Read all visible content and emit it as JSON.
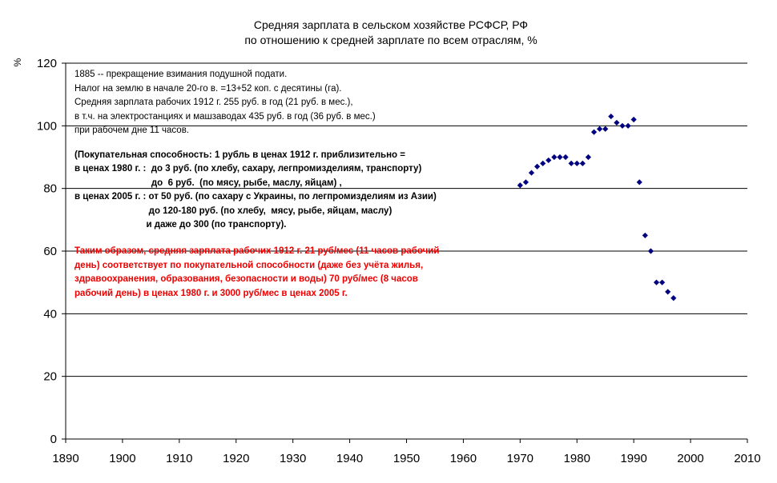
{
  "chart_data": {
    "type": "scatter",
    "title": [
      "Средняя зарплата в сельском хозяйстве РСФСР, РФ",
      "по отношению к средней зарплате по всем отраслям, %"
    ],
    "ylabel": "%",
    "xlabel": "",
    "xlim": [
      1890,
      2010
    ],
    "ylim": [
      0,
      120
    ],
    "x_ticks": [
      1890,
      1900,
      1910,
      1920,
      1930,
      1940,
      1950,
      1960,
      1970,
      1980,
      1990,
      2000,
      2010
    ],
    "y_ticks": [
      0,
      20,
      40,
      60,
      80,
      100,
      120
    ],
    "grid": "horizontal",
    "marker_color": "#000080",
    "x": [
      1970,
      1971,
      1972,
      1973,
      1974,
      1975,
      1976,
      1977,
      1978,
      1979,
      1980,
      1981,
      1982,
      1983,
      1984,
      1985,
      1986,
      1987,
      1988,
      1989,
      1990,
      1991,
      1992,
      1993,
      1994,
      1995,
      1996,
      1997
    ],
    "y": [
      81,
      82,
      85,
      87,
      88,
      89,
      90,
      90,
      90,
      88,
      88,
      88,
      90,
      98,
      99,
      99,
      103,
      101,
      100,
      100,
      102,
      82,
      65,
      60,
      50,
      50,
      47,
      45
    ],
    "annotations": {
      "note_1": "1885 -- прекращение взимания подушной подати.\nНалог на землю в начале 20-го в. =13+52 коп. с десятины (га).\nСредняя зарплата рабочих 1912 г. 255 руб. в год (21 руб. в мес.),\nв т.ч. на электростанциях и машзаводах 435 руб. в год (36 руб. в мес.)\nпри рабочем дне 11 часов.",
      "note_2": "(Покупательная способность: 1 рубль в ценах 1912 г. приблизительно =\nв ценах 1980 г. :  до 3 руб. (по хлебу, сахару, легпромизделиям, транспорту)\n                              до  6 руб.  (по мясу, рыбе, маслу, яйцам) ,\nв ценах 2005 г. : от 50 руб. (по сахару с Украины, по легпромизделиям из Азии)\n                             до 120-180 руб. (по хлебу,  мясу, рыбе, яйцам, маслу)\n                            и даже до 300 (по транспорту).",
      "note_3": "Таким образом, средняя зарплата рабочих 1912 г. 21 руб/мес (11 часов рабочий\nдень) соответствует по покупательной способности (даже без учёта жилья,\nздравоохранения, образования, безопасности и воды) 70 руб/мес (8 часов\nрабочий день) в ценах 1980 г. и 3000 руб/мес в ценах 2005 г."
    }
  }
}
